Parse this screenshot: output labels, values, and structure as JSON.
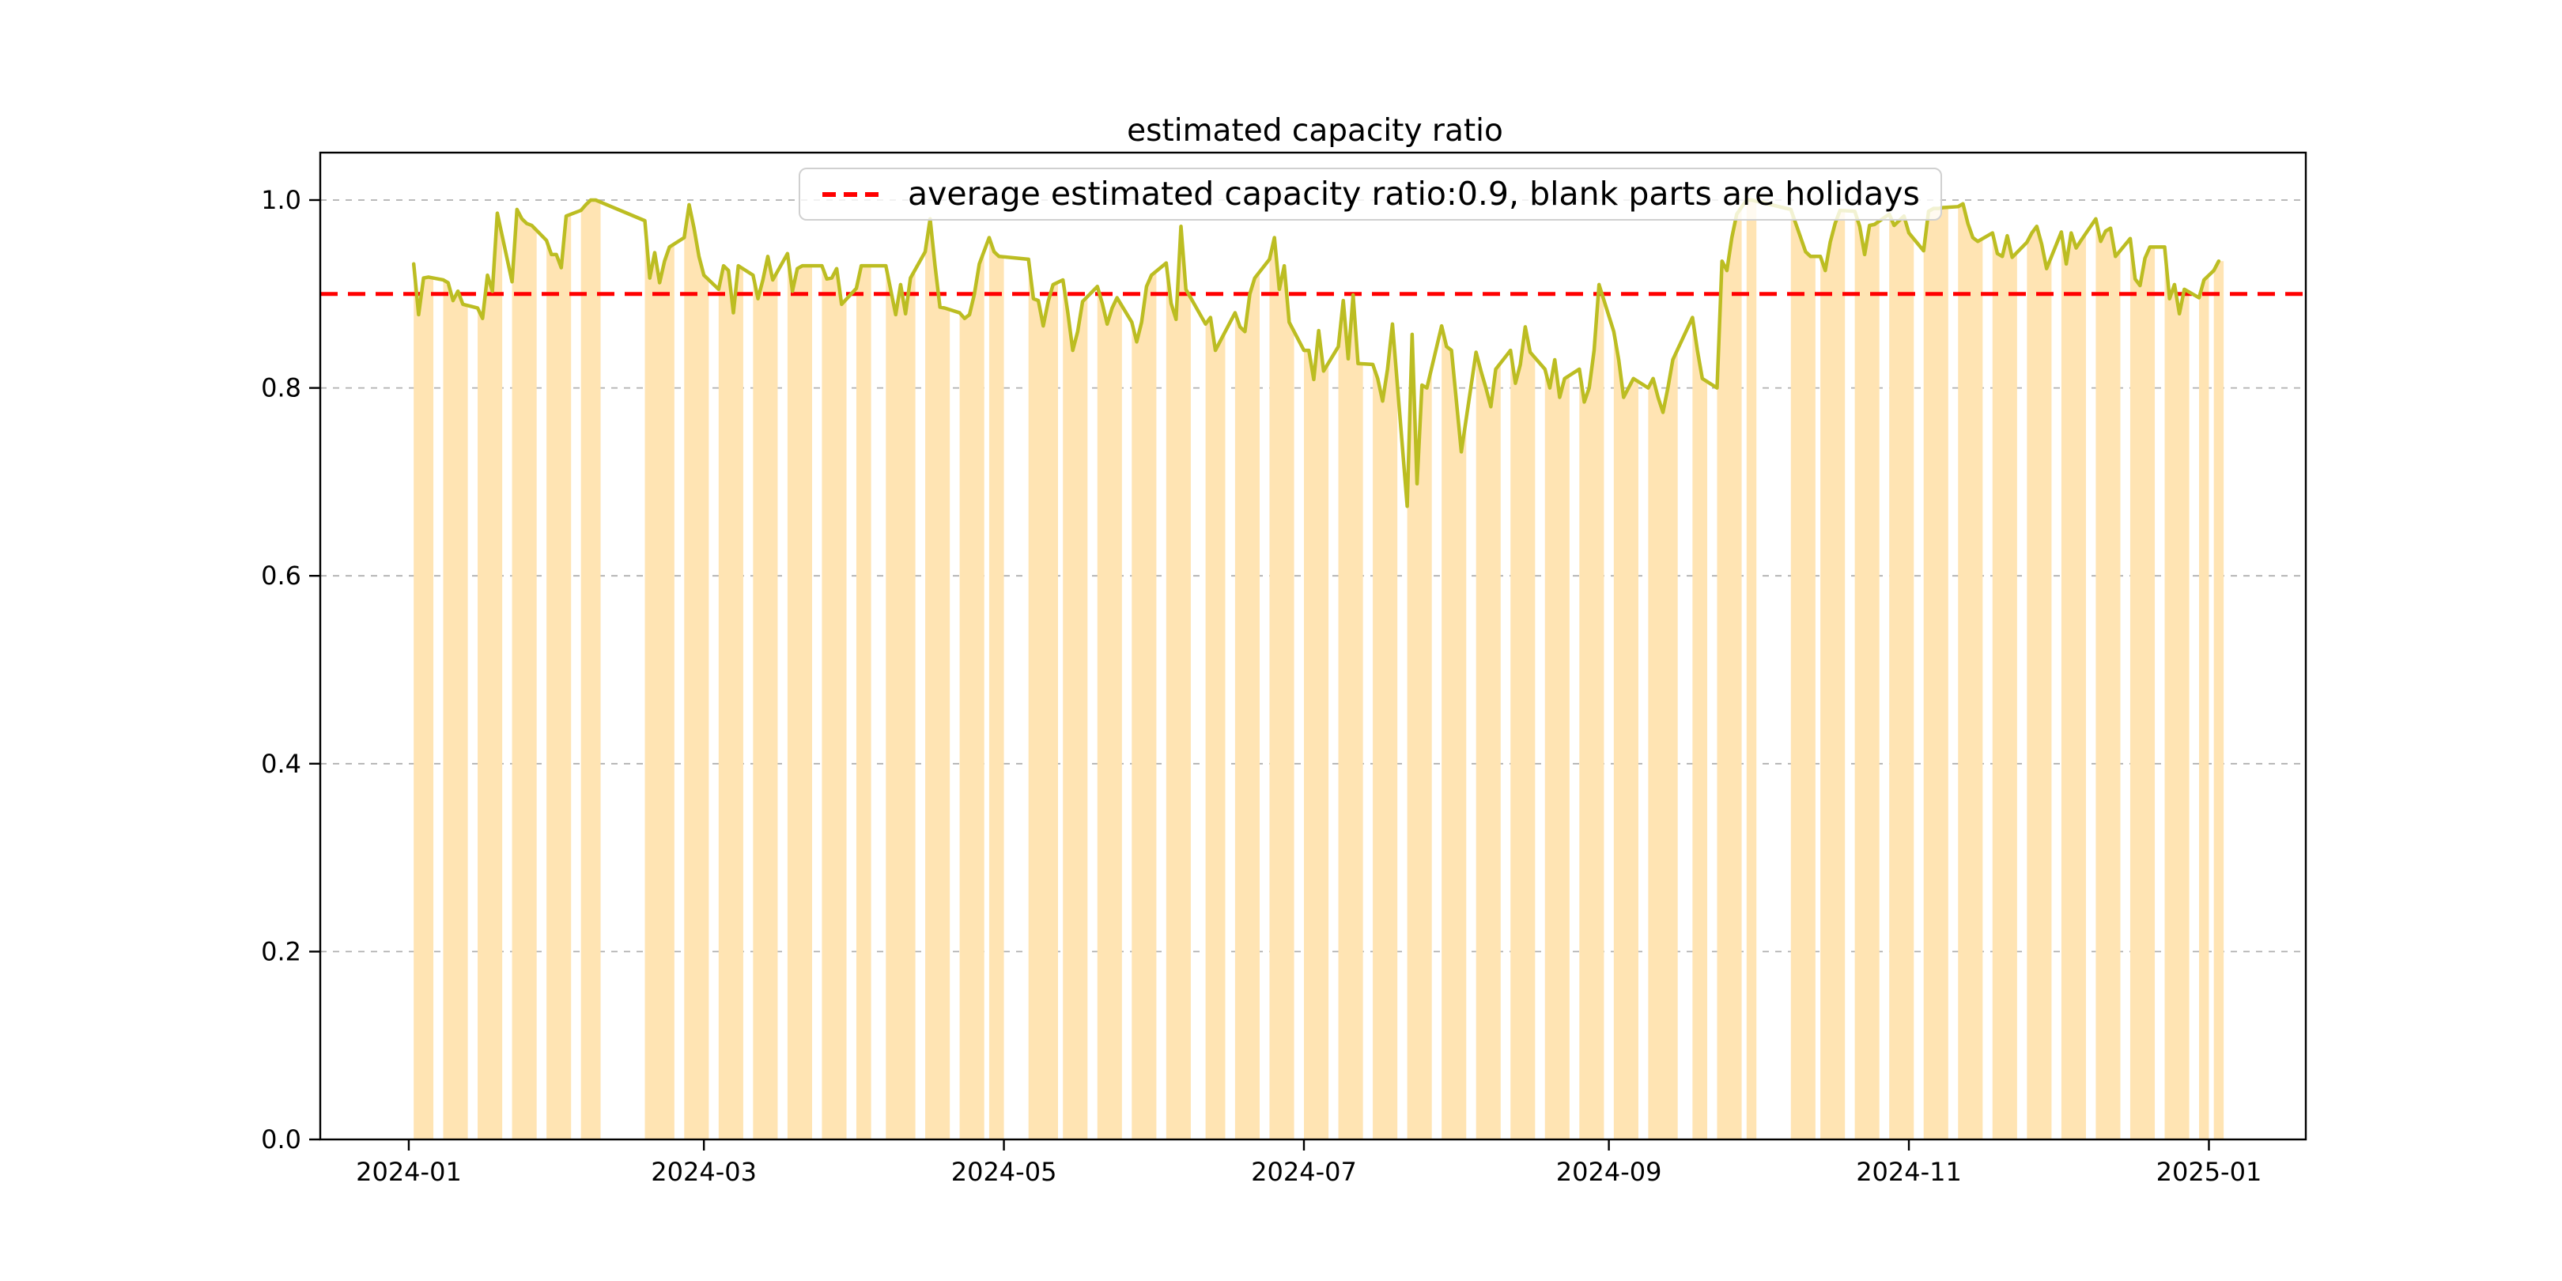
{
  "figure": {
    "title": "estimated capacity ratio",
    "background": "#ffffff"
  },
  "legend": {
    "label": "average estimated capacity ratio:0.9, blank parts are holidays",
    "marker_color": "#ff0000",
    "marker_style": "dashed"
  },
  "chart_data": {
    "type": "line",
    "title": "estimated capacity ratio",
    "x_axis": {
      "kind": "date",
      "day_zero": "2024-01-01",
      "unit": "days since 2024-01-01",
      "xlim": [
        -18.0,
        385.7
      ],
      "ticks": [
        {
          "day": 0,
          "label": "2024-01"
        },
        {
          "day": 60,
          "label": "2024-03"
        },
        {
          "day": 121,
          "label": "2024-05"
        },
        {
          "day": 182,
          "label": "2024-07"
        },
        {
          "day": 244,
          "label": "2024-09"
        },
        {
          "day": 305,
          "label": "2024-11"
        },
        {
          "day": 366,
          "label": "2025-01"
        }
      ]
    },
    "y_axis": {
      "ylim": [
        0,
        1.0505
      ],
      "grid": true,
      "grid_style": "dashed",
      "grid_color": "#b0b0b0",
      "ticks": [
        {
          "v": 0.0,
          "label": "0.0"
        },
        {
          "v": 0.2,
          "label": "0.2"
        },
        {
          "v": 0.4,
          "label": "0.4"
        },
        {
          "v": 0.6,
          "label": "0.6"
        },
        {
          "v": 0.8,
          "label": "0.8"
        },
        {
          "v": 1.0,
          "label": "1.0"
        }
      ]
    },
    "average_line": {
      "value": 0.9,
      "color": "#ff0000",
      "style": "dashed",
      "label": "average estimated capacity ratio:0.9, blank parts are holidays"
    },
    "series": [
      {
        "name": "estimated capacity ratio",
        "color": "#bcbd22",
        "points": [
          [
            1,
            0.932
          ],
          [
            2,
            0.878
          ],
          [
            3,
            0.917
          ],
          [
            4,
            0.918
          ],
          [
            7,
            0.915
          ],
          [
            8,
            0.912
          ],
          [
            9,
            0.893
          ],
          [
            10,
            0.903
          ],
          [
            11,
            0.889
          ],
          [
            14,
            0.885
          ],
          [
            15,
            0.874
          ],
          [
            16,
            0.92
          ],
          [
            17,
            0.903
          ],
          [
            18,
            0.986
          ],
          [
            21,
            0.913
          ],
          [
            22,
            0.99
          ],
          [
            23,
            0.98
          ],
          [
            24,
            0.975
          ],
          [
            25,
            0.973
          ],
          [
            28,
            0.957
          ],
          [
            29,
            0.942
          ],
          [
            30,
            0.942
          ],
          [
            31,
            0.928
          ],
          [
            32,
            0.983
          ],
          [
            35,
            0.989
          ],
          [
            36,
            0.995
          ],
          [
            37,
            1.0
          ],
          [
            38,
            1.0
          ],
          [
            48,
            0.978
          ],
          [
            49,
            0.917
          ],
          [
            50,
            0.944
          ],
          [
            51,
            0.912
          ],
          [
            52,
            0.935
          ],
          [
            53,
            0.95
          ],
          [
            56,
            0.96
          ],
          [
            57,
            0.995
          ],
          [
            58,
            0.97
          ],
          [
            59,
            0.94
          ],
          [
            60,
            0.92
          ],
          [
            63,
            0.905
          ],
          [
            64,
            0.93
          ],
          [
            65,
            0.925
          ],
          [
            66,
            0.88
          ],
          [
            67,
            0.93
          ],
          [
            70,
            0.92
          ],
          [
            71,
            0.895
          ],
          [
            72,
            0.915
          ],
          [
            73,
            0.94
          ],
          [
            74,
            0.915
          ],
          [
            77,
            0.943
          ],
          [
            78,
            0.903
          ],
          [
            79,
            0.927
          ],
          [
            80,
            0.93
          ],
          [
            81,
            0.93
          ],
          [
            84,
            0.93
          ],
          [
            85,
            0.916
          ],
          [
            86,
            0.917
          ],
          [
            87,
            0.927
          ],
          [
            88,
            0.889
          ],
          [
            91,
            0.906
          ],
          [
            92,
            0.93
          ],
          [
            93,
            0.93
          ],
          [
            97,
            0.93
          ],
          [
            98,
            0.904
          ],
          [
            99,
            0.878
          ],
          [
            100,
            0.91
          ],
          [
            101,
            0.879
          ],
          [
            102,
            0.917
          ],
          [
            105,
            0.945
          ],
          [
            106,
            0.98
          ],
          [
            107,
            0.93
          ],
          [
            108,
            0.886
          ],
          [
            109,
            0.885
          ],
          [
            112,
            0.88
          ],
          [
            113,
            0.874
          ],
          [
            114,
            0.878
          ],
          [
            115,
            0.9
          ],
          [
            116,
            0.932
          ],
          [
            118,
            0.96
          ],
          [
            119,
            0.945
          ],
          [
            120,
            0.94
          ],
          [
            126,
            0.937
          ],
          [
            127,
            0.895
          ],
          [
            128,
            0.893
          ],
          [
            129,
            0.866
          ],
          [
            130,
            0.892
          ],
          [
            131,
            0.91
          ],
          [
            133,
            0.915
          ],
          [
            134,
            0.88
          ],
          [
            135,
            0.84
          ],
          [
            136,
            0.86
          ],
          [
            137,
            0.892
          ],
          [
            140,
            0.908
          ],
          [
            141,
            0.89
          ],
          [
            142,
            0.868
          ],
          [
            143,
            0.885
          ],
          [
            144,
            0.896
          ],
          [
            147,
            0.87
          ],
          [
            148,
            0.849
          ],
          [
            149,
            0.87
          ],
          [
            150,
            0.908
          ],
          [
            151,
            0.92
          ],
          [
            154,
            0.933
          ],
          [
            155,
            0.89
          ],
          [
            156,
            0.873
          ],
          [
            157,
            0.972
          ],
          [
            158,
            0.905
          ],
          [
            162,
            0.868
          ],
          [
            163,
            0.875
          ],
          [
            164,
            0.84
          ],
          [
            165,
            0.85
          ],
          [
            168,
            0.88
          ],
          [
            169,
            0.865
          ],
          [
            170,
            0.86
          ],
          [
            171,
            0.9
          ],
          [
            172,
            0.917
          ],
          [
            175,
            0.937
          ],
          [
            176,
            0.96
          ],
          [
            177,
            0.905
          ],
          [
            178,
            0.93
          ],
          [
            179,
            0.87
          ],
          [
            182,
            0.84
          ],
          [
            183,
            0.84
          ],
          [
            184,
            0.809
          ],
          [
            185,
            0.861
          ],
          [
            186,
            0.818
          ],
          [
            189,
            0.844
          ],
          [
            190,
            0.893
          ],
          [
            191,
            0.831
          ],
          [
            192,
            0.899
          ],
          [
            193,
            0.826
          ],
          [
            196,
            0.825
          ],
          [
            197,
            0.81
          ],
          [
            198,
            0.786
          ],
          [
            199,
            0.82
          ],
          [
            200,
            0.868
          ],
          [
            203,
            0.674
          ],
          [
            204,
            0.857
          ],
          [
            205,
            0.698
          ],
          [
            206,
            0.803
          ],
          [
            207,
            0.8
          ],
          [
            210,
            0.866
          ],
          [
            211,
            0.844
          ],
          [
            212,
            0.84
          ],
          [
            213,
            0.786
          ],
          [
            214,
            0.732
          ],
          [
            217,
            0.838
          ],
          [
            218,
            0.818
          ],
          [
            219,
            0.8
          ],
          [
            220,
            0.78
          ],
          [
            221,
            0.82
          ],
          [
            224,
            0.84
          ],
          [
            225,
            0.805
          ],
          [
            226,
            0.825
          ],
          [
            227,
            0.865
          ],
          [
            228,
            0.838
          ],
          [
            231,
            0.82
          ],
          [
            232,
            0.8
          ],
          [
            233,
            0.83
          ],
          [
            234,
            0.79
          ],
          [
            235,
            0.81
          ],
          [
            238,
            0.82
          ],
          [
            239,
            0.785
          ],
          [
            240,
            0.8
          ],
          [
            241,
            0.84
          ],
          [
            242,
            0.91
          ],
          [
            245,
            0.86
          ],
          [
            246,
            0.83
          ],
          [
            247,
            0.79
          ],
          [
            248,
            0.8
          ],
          [
            249,
            0.81
          ],
          [
            252,
            0.8
          ],
          [
            253,
            0.81
          ],
          [
            254,
            0.79
          ],
          [
            255,
            0.774
          ],
          [
            256,
            0.8
          ],
          [
            257,
            0.83
          ],
          [
            261,
            0.875
          ],
          [
            262,
            0.84
          ],
          [
            263,
            0.81
          ],
          [
            266,
            0.8
          ],
          [
            267,
            0.935
          ],
          [
            268,
            0.925
          ],
          [
            269,
            0.96
          ],
          [
            270,
            0.985
          ],
          [
            272,
            1.0
          ],
          [
            273,
            1.0
          ],
          [
            281,
            0.99
          ],
          [
            282,
            0.975
          ],
          [
            283,
            0.96
          ],
          [
            284,
            0.945
          ],
          [
            285,
            0.94
          ],
          [
            287,
            0.94
          ],
          [
            288,
            0.925
          ],
          [
            289,
            0.955
          ],
          [
            290,
            0.975
          ],
          [
            291,
            0.989
          ],
          [
            294,
            0.988
          ],
          [
            295,
            0.972
          ],
          [
            296,
            0.942
          ],
          [
            297,
            0.973
          ],
          [
            298,
            0.974
          ],
          [
            301,
            0.985
          ],
          [
            302,
            0.973
          ],
          [
            303,
            0.978
          ],
          [
            304,
            0.983
          ],
          [
            305,
            0.965
          ],
          [
            308,
            0.946
          ],
          [
            309,
            0.988
          ],
          [
            310,
            0.991
          ],
          [
            311,
            0.991
          ],
          [
            312,
            0.992
          ],
          [
            315,
            0.993
          ],
          [
            316,
            0.996
          ],
          [
            317,
            0.975
          ],
          [
            318,
            0.96
          ],
          [
            319,
            0.956
          ],
          [
            322,
            0.965
          ],
          [
            323,
            0.943
          ],
          [
            324,
            0.94
          ],
          [
            325,
            0.962
          ],
          [
            326,
            0.939
          ],
          [
            329,
            0.955
          ],
          [
            330,
            0.965
          ],
          [
            331,
            0.972
          ],
          [
            332,
            0.953
          ],
          [
            333,
            0.927
          ],
          [
            336,
            0.966
          ],
          [
            337,
            0.932
          ],
          [
            338,
            0.965
          ],
          [
            339,
            0.949
          ],
          [
            340,
            0.957
          ],
          [
            343,
            0.98
          ],
          [
            344,
            0.956
          ],
          [
            345,
            0.967
          ],
          [
            346,
            0.97
          ],
          [
            347,
            0.94
          ],
          [
            350,
            0.959
          ],
          [
            351,
            0.916
          ],
          [
            352,
            0.909
          ],
          [
            353,
            0.938
          ],
          [
            354,
            0.95
          ],
          [
            357,
            0.95
          ],
          [
            358,
            0.895
          ],
          [
            359,
            0.91
          ],
          [
            360,
            0.879
          ],
          [
            361,
            0.905
          ],
          [
            364,
            0.896
          ],
          [
            365,
            0.915
          ],
          [
            367,
            0.925
          ],
          [
            368,
            0.935
          ]
        ]
      }
    ],
    "workday_fill": {
      "color": "#ffe4b3",
      "note": "blank parts are holidays",
      "periods": [
        [
          1,
          5
        ],
        [
          7,
          12
        ],
        [
          14,
          19
        ],
        [
          21,
          26
        ],
        [
          28,
          33
        ],
        [
          35,
          39
        ],
        [
          48,
          54
        ],
        [
          56,
          61
        ],
        [
          63,
          68
        ],
        [
          70,
          75
        ],
        [
          77,
          82
        ],
        [
          84,
          89
        ],
        [
          91,
          94
        ],
        [
          97,
          103
        ],
        [
          105,
          110
        ],
        [
          112,
          117
        ],
        [
          118,
          121
        ],
        [
          126,
          132
        ],
        [
          133,
          138
        ],
        [
          140,
          145
        ],
        [
          147,
          152
        ],
        [
          154,
          159
        ],
        [
          162,
          166
        ],
        [
          168,
          173
        ],
        [
          175,
          180
        ],
        [
          182,
          187
        ],
        [
          189,
          194
        ],
        [
          196,
          201
        ],
        [
          203,
          208
        ],
        [
          210,
          215
        ],
        [
          217,
          222
        ],
        [
          224,
          229
        ],
        [
          231,
          236
        ],
        [
          238,
          243
        ],
        [
          245,
          250
        ],
        [
          252,
          258
        ],
        [
          261,
          264
        ],
        [
          266,
          271
        ],
        [
          272,
          274
        ],
        [
          281,
          286
        ],
        [
          287,
          292
        ],
        [
          294,
          299
        ],
        [
          301,
          306
        ],
        [
          308,
          313
        ],
        [
          315,
          320
        ],
        [
          322,
          327
        ],
        [
          329,
          334
        ],
        [
          336,
          341
        ],
        [
          343,
          348
        ],
        [
          350,
          355
        ],
        [
          357,
          362
        ],
        [
          364,
          366
        ],
        [
          367,
          369
        ]
      ]
    }
  }
}
